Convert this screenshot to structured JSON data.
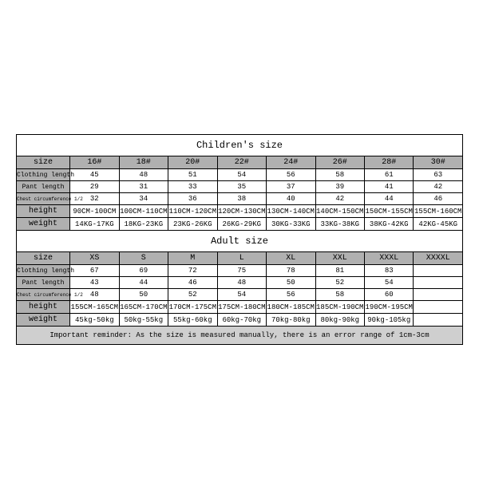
{
  "table": {
    "background_color": "#ffffff",
    "header_bg": "#b0b0b0",
    "label_bg": "#b0b0b0",
    "reminder_bg": "#cfcfcf",
    "border_color": "#000000",
    "font_family": "Courier New, monospace",
    "title_fontsize": 12,
    "header_fontsize": 10,
    "cell_fontsize": 9,
    "small_label_fontsize": 6
  },
  "children": {
    "title": "Children's size",
    "columns": [
      "size",
      "16#",
      "18#",
      "20#",
      "22#",
      "24#",
      "26#",
      "28#",
      "30#"
    ],
    "rows": [
      {
        "label": "Clothing length",
        "vals": [
          "45",
          "48",
          "51",
          "54",
          "56",
          "58",
          "61",
          "63"
        ]
      },
      {
        "label": "Pant length",
        "vals": [
          "29",
          "31",
          "33",
          "35",
          "37",
          "39",
          "41",
          "42"
        ]
      },
      {
        "label": "Chest circumference 1/2",
        "vals": [
          "32",
          "34",
          "36",
          "38",
          "40",
          "42",
          "44",
          "46"
        ]
      },
      {
        "label": "height",
        "vals": [
          "90CM-100CM",
          "100CM-110CM",
          "110CM-120CM",
          "120CM-130CM",
          "130CM-140CM",
          "140CM-150CM",
          "150CM-155CM",
          "155CM-160CM"
        ]
      },
      {
        "label": "weight",
        "vals": [
          "14KG-17KG",
          "18KG-23KG",
          "23KG-26KG",
          "26KG-29KG",
          "30KG-33KG",
          "33KG-38KG",
          "38KG-42KG",
          "42KG-45KG"
        ]
      }
    ]
  },
  "adult": {
    "title": "Adult size",
    "columns": [
      "size",
      "XS",
      "S",
      "M",
      "L",
      "XL",
      "XXL",
      "XXXL",
      "XXXXL"
    ],
    "rows": [
      {
        "label": "Clothing length",
        "vals": [
          "67",
          "69",
          "72",
          "75",
          "78",
          "81",
          "83",
          ""
        ]
      },
      {
        "label": "Pant length",
        "vals": [
          "43",
          "44",
          "46",
          "48",
          "50",
          "52",
          "54",
          ""
        ]
      },
      {
        "label": "Chest circumference 1/2",
        "vals": [
          "48",
          "50",
          "52",
          "54",
          "56",
          "58",
          "60",
          ""
        ]
      },
      {
        "label": "height",
        "vals": [
          "155CM-165CM",
          "165CM-170CM",
          "170CM-175CM",
          "175CM-180CM",
          "180CM-185CM",
          "185CM-190CM",
          "190CM-195CM",
          ""
        ]
      },
      {
        "label": "weight",
        "vals": [
          "45kg-50kg",
          "50kg-55kg",
          "55kg-60kg",
          "60kg-70kg",
          "70kg-80kg",
          "80kg-90kg",
          "90kg-105kg",
          ""
        ]
      }
    ]
  },
  "reminder": "Important reminder: As the size is measured manually, there is an error range of 1cm-3cm"
}
